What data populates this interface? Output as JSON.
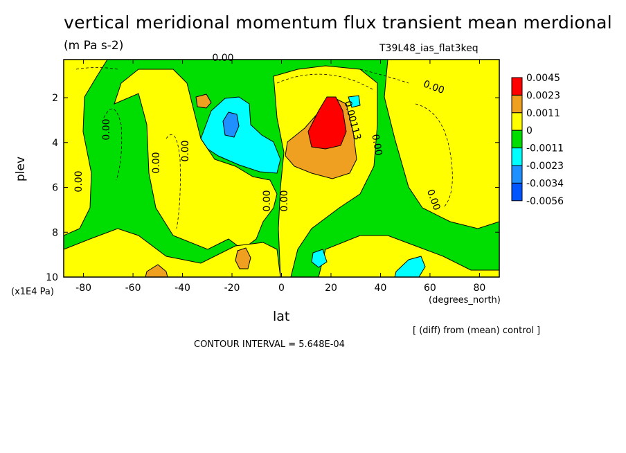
{
  "header": {
    "title": "vertical meridional momentum flux transient mean merdional",
    "units": "(m Pa s-2)",
    "run": "T39L48_ias_flat3keq",
    "difference_note": "[ (diff) from (mean) control ]",
    "contour_interval": "CONTOUR INTERVAL = 5.648E-04"
  },
  "chart_data": {
    "type": "heatmap",
    "title": "vertical meridional momentum flux transient mean merdional",
    "xlabel": "lat",
    "xunits": "(degrees_north)",
    "ylabel": "plev",
    "yunits": "(x1E4 Pa)",
    "xlim": [
      -88,
      88
    ],
    "ylim": [
      10,
      0.3
    ],
    "x_ticks": [
      -80,
      -60,
      -40,
      -20,
      0,
      20,
      40,
      60,
      80
    ],
    "x_tick_labels": [
      "-80",
      "-60",
      "-40",
      "-20",
      "0",
      "20",
      "40",
      "60",
      "80"
    ],
    "y_ticks": [
      2,
      4,
      6,
      8,
      10
    ],
    "y_tick_labels": [
      "2",
      "4",
      "6",
      "8",
      "10"
    ],
    "grid": false,
    "legend": {
      "placement": "right",
      "labels": [
        "0.0045",
        "0.0023",
        "0.0011",
        "0",
        "-0.0011",
        "-0.0023",
        "-0.0034",
        "-0.0056"
      ],
      "colors": [
        "#ff0000",
        "#f0a020",
        "#ffff00",
        "#00dd00",
        "#00ffff",
        "#1e90ff",
        "#0055ff"
      ]
    },
    "contour_labels": [
      "0.00",
      "0.00",
      "0.00",
      "0.00",
      "0.00",
      "0.00",
      "0.00",
      "0.00",
      "0.00",
      "0.00",
      "0.00113"
    ],
    "features": [
      {
        "name": "positive maximum",
        "lat": 18,
        "plev": 3.2,
        "value": 0.0045
      },
      {
        "name": "negative minimum",
        "lat": -20,
        "plev": 3.3,
        "value": -0.0034
      }
    ]
  }
}
